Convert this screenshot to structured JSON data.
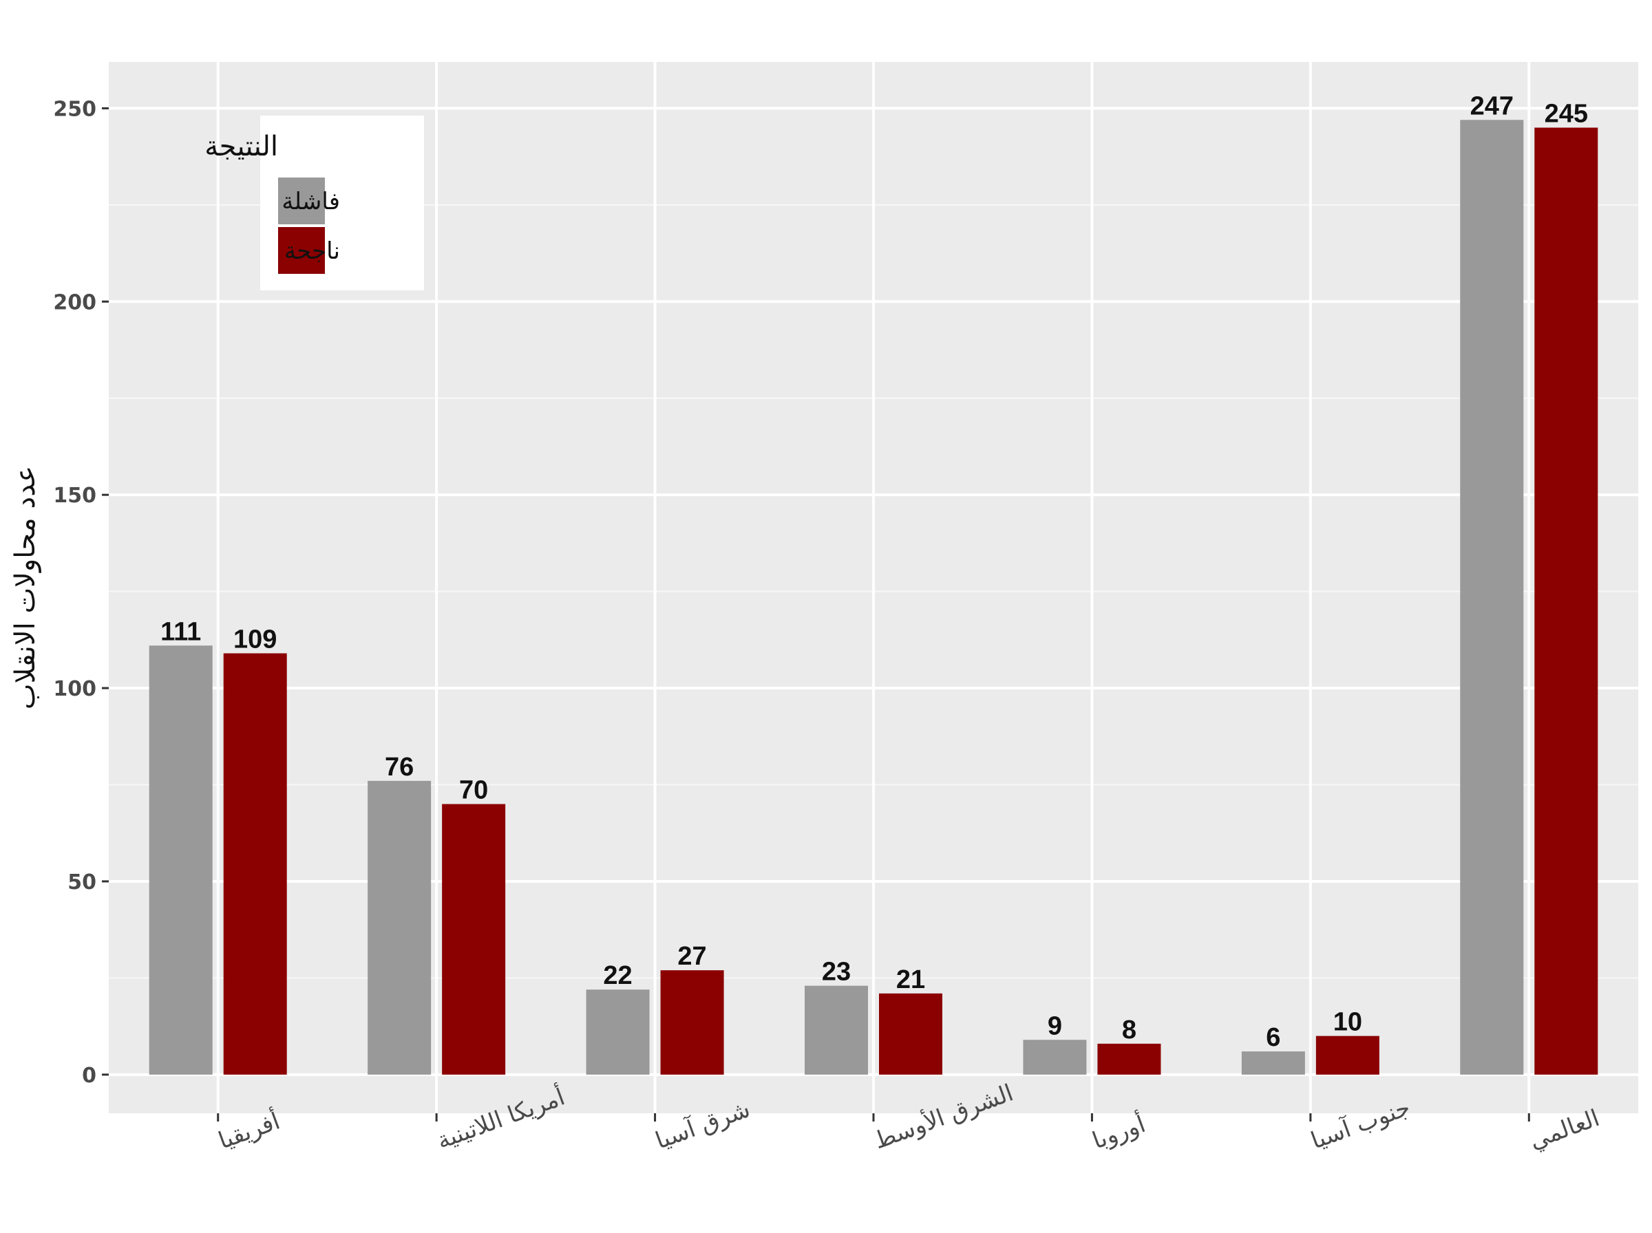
{
  "chart_data": {
    "type": "bar",
    "ylabel": "عدد محاولات الانقلاب",
    "ylim": [
      -10,
      262
    ],
    "yticks": [
      0,
      50,
      100,
      150,
      200,
      250
    ],
    "categories": [
      "أفريقيا",
      "أمريكا اللاتينية",
      "شرق آسيا",
      "الشرق الأوسط",
      "أوروبا",
      "جنوب آسيا",
      "العالمي"
    ],
    "series": [
      {
        "name": "فاشلة",
        "color": "#999999",
        "values": [
          111,
          76,
          22,
          23,
          9,
          6,
          247
        ]
      },
      {
        "name": "ناجحة",
        "color": "#8b0000",
        "values": [
          109,
          70,
          27,
          21,
          8,
          10,
          245
        ]
      }
    ],
    "legend": {
      "title": "النتيجة",
      "position": "top-left"
    },
    "grid": true,
    "panel_color": "#ebebeb"
  }
}
